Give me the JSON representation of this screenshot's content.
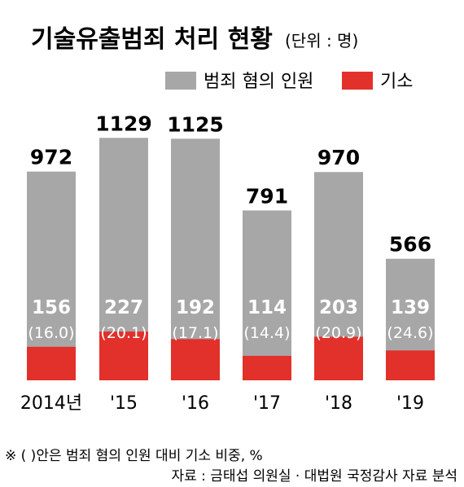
{
  "chart_data": {
    "type": "bar",
    "title": "기술유출범죄 처리 현황",
    "subtitle": "(단위 : 명)",
    "categories": [
      "2014년",
      "'15",
      "'16",
      "'17",
      "'18",
      "'19"
    ],
    "series": [
      {
        "name": "범죄 혐의 인원",
        "values": [
          972,
          1129,
          1125,
          791,
          970,
          566
        ],
        "color": "#a7a7a7"
      },
      {
        "name": "기소",
        "values": [
          156,
          227,
          192,
          114,
          203,
          139
        ],
        "color": "#e2302b"
      }
    ],
    "indictment_share_pct": [
      "(16.0)",
      "(20.1)",
      "(17.1)",
      "(14.4)",
      "(20.9)",
      "(24.6)"
    ],
    "ylim": [
      0,
      1200
    ],
    "grid": false,
    "legend_position": "top-right"
  },
  "footnote": "※ (    )안은 범죄 혐의 인원 대비 기소 비중, %",
  "source": "자료 : 금태섭 의원실 · 대법원 국정감사 자료 분석"
}
